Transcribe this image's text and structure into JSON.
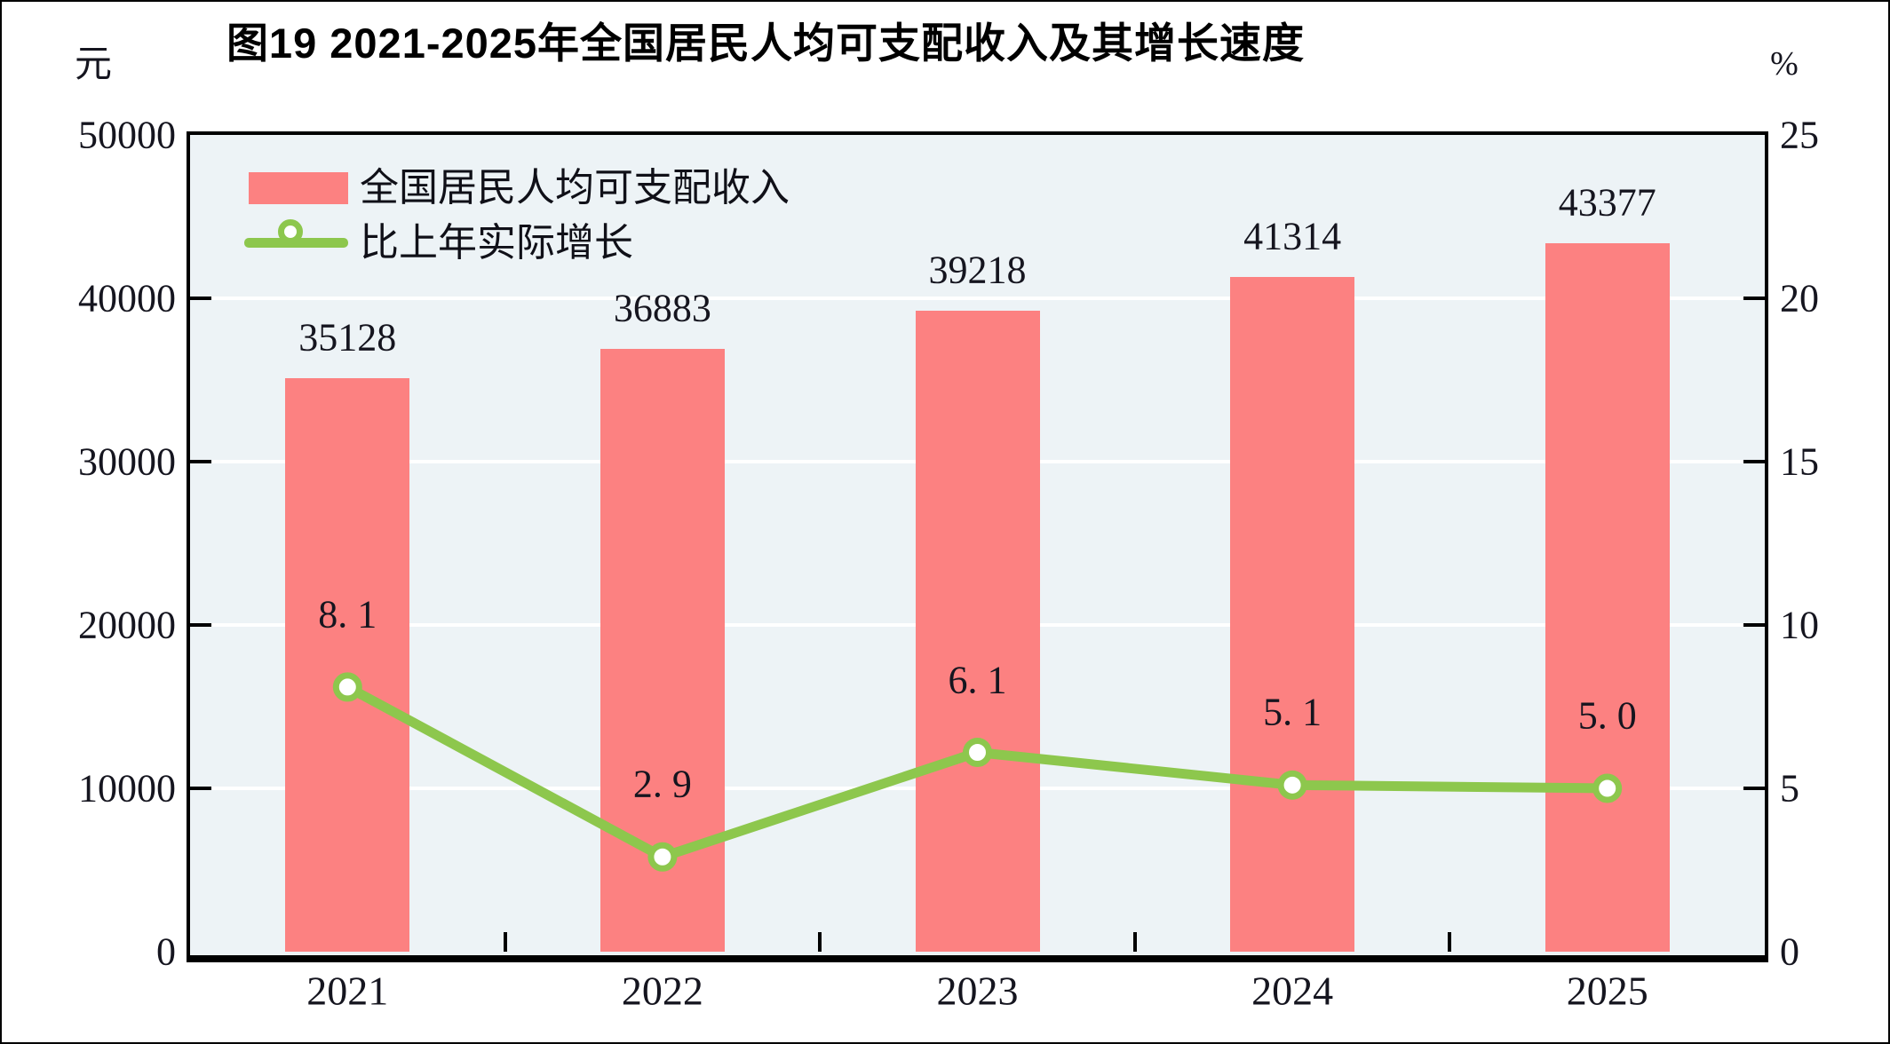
{
  "title": "图19  2021-2025年全国居民人均可支配收入及其增长速度",
  "legend": {
    "bar_label": "全国居民人均可支配收入",
    "line_label": "比上年实际增长"
  },
  "chart_data": {
    "type": "bar+line",
    "categories": [
      "2021",
      "2022",
      "2023",
      "2024",
      "2025"
    ],
    "series": [
      {
        "name": "全国居民人均可支配收入",
        "type": "bar",
        "axis": "left",
        "unit": "元",
        "values": [
          35128,
          36883,
          39218,
          41314,
          43377
        ],
        "labels": [
          "35128",
          "36883",
          "39218",
          "41314",
          "43377"
        ],
        "color": "#FC8181"
      },
      {
        "name": "比上年实际增长",
        "type": "line",
        "axis": "right",
        "unit": "%",
        "values": [
          8.1,
          2.9,
          6.1,
          5.1,
          5.0
        ],
        "labels": [
          "8. 1",
          "2. 9",
          "6. 1",
          "5. 1",
          "5. 0"
        ],
        "color": "#8DC74D",
        "marker": "circle-white-fill"
      }
    ],
    "left_axis": {
      "unit": "元",
      "min": 0,
      "max": 50000,
      "step": 10000,
      "tick_labels": [
        "0",
        "10000",
        "20000",
        "30000",
        "40000",
        "50000"
      ]
    },
    "right_axis": {
      "unit": "%",
      "min": 0,
      "max": 25,
      "step": 5,
      "tick_labels": [
        "0",
        "5",
        "10",
        "15",
        "20",
        "25"
      ]
    },
    "style": {
      "plot_bg": "#EDF3F6",
      "grid_color": "#FFFFFF",
      "axis_color": "#000000",
      "text_color": "#15151F",
      "grid": true,
      "legend_position": "top-left-inside"
    }
  }
}
